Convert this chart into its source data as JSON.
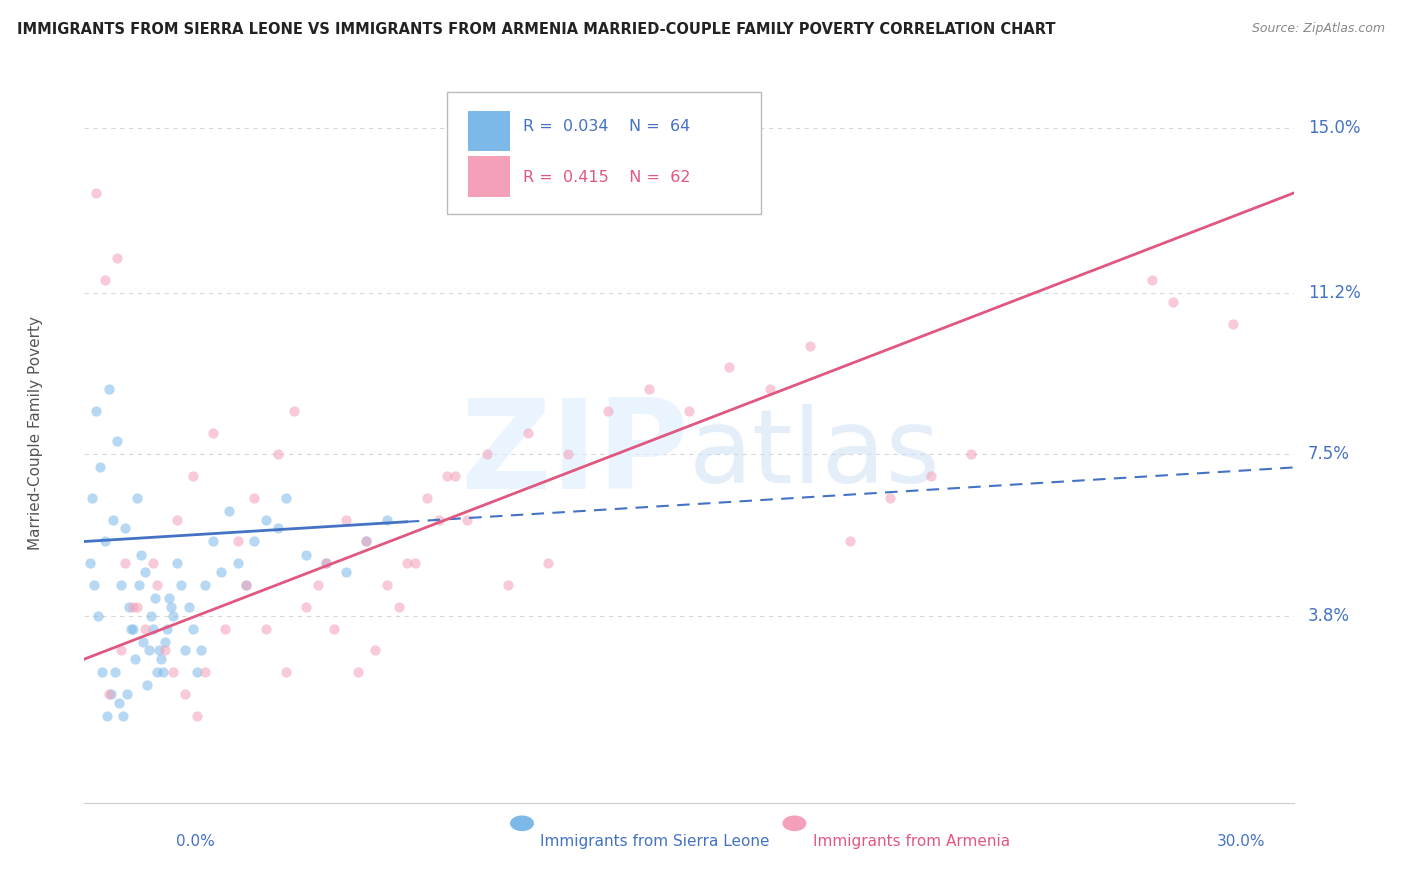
{
  "title": "IMMIGRANTS FROM SIERRA LEONE VS IMMIGRANTS FROM ARMENIA MARRIED-COUPLE FAMILY POVERTY CORRELATION CHART",
  "source": "Source: ZipAtlas.com",
  "ylabel": "Married-Couple Family Poverty",
  "xlim": [
    0.0,
    30.0
  ],
  "ylim": [
    -0.5,
    16.5
  ],
  "ytick_vals": [
    0.0,
    3.8,
    7.5,
    11.2,
    15.0
  ],
  "ytick_labels": [
    "",
    "3.8%",
    "7.5%",
    "11.2%",
    "15.0%"
  ],
  "color_sierra": "#7cb8e8",
  "color_armenia": "#f4a0b8",
  "color_blue_text": "#4472c4",
  "color_pink_text": "#e05880",
  "color_grid": "#d8d8d8",
  "background_color": "#ffffff",
  "sierra_x": [
    0.2,
    0.3,
    0.4,
    0.5,
    0.6,
    0.7,
    0.8,
    0.9,
    1.0,
    1.1,
    1.2,
    1.3,
    1.4,
    1.5,
    1.6,
    1.7,
    1.8,
    1.9,
    2.0,
    2.1,
    2.2,
    2.3,
    2.4,
    2.5,
    2.6,
    2.7,
    2.8,
    2.9,
    3.0,
    3.2,
    3.4,
    3.6,
    3.8,
    4.0,
    4.2,
    4.5,
    4.8,
    5.0,
    5.5,
    6.0,
    6.5,
    7.0,
    7.5,
    0.15,
    0.25,
    0.35,
    0.45,
    0.55,
    0.65,
    0.75,
    0.85,
    0.95,
    1.05,
    1.15,
    1.25,
    1.35,
    1.45,
    1.55,
    1.65,
    1.75,
    1.85,
    1.95,
    2.05,
    2.15
  ],
  "sierra_y": [
    6.5,
    8.5,
    7.2,
    5.5,
    9.0,
    6.0,
    7.8,
    4.5,
    5.8,
    4.0,
    3.5,
    6.5,
    5.2,
    4.8,
    3.0,
    3.5,
    2.5,
    2.8,
    3.2,
    4.2,
    3.8,
    5.0,
    4.5,
    3.0,
    4.0,
    3.5,
    2.5,
    3.0,
    4.5,
    5.5,
    4.8,
    6.2,
    5.0,
    4.5,
    5.5,
    6.0,
    5.8,
    6.5,
    5.2,
    5.0,
    4.8,
    5.5,
    6.0,
    5.0,
    4.5,
    3.8,
    2.5,
    1.5,
    2.0,
    2.5,
    1.8,
    1.5,
    2.0,
    3.5,
    2.8,
    4.5,
    3.2,
    2.2,
    3.8,
    4.2,
    3.0,
    2.5,
    3.5,
    4.0
  ],
  "armenia_x": [
    0.3,
    0.5,
    0.8,
    1.0,
    1.2,
    1.5,
    1.8,
    2.0,
    2.2,
    2.5,
    2.8,
    3.0,
    3.5,
    4.0,
    4.5,
    5.0,
    5.5,
    6.0,
    6.5,
    7.0,
    7.5,
    8.0,
    8.5,
    9.0,
    9.5,
    10.0,
    11.0,
    12.0,
    13.0,
    14.0,
    15.0,
    16.0,
    17.0,
    18.0,
    19.0,
    20.0,
    21.0,
    22.0,
    0.6,
    0.9,
    1.3,
    1.7,
    2.3,
    2.7,
    3.2,
    3.8,
    4.2,
    4.8,
    5.2,
    5.8,
    6.2,
    6.8,
    7.2,
    7.8,
    8.2,
    8.8,
    9.2,
    10.5,
    11.5,
    26.5,
    28.5,
    27.0
  ],
  "armenia_y": [
    13.5,
    11.5,
    12.0,
    5.0,
    4.0,
    3.5,
    4.5,
    3.0,
    2.5,
    2.0,
    1.5,
    2.5,
    3.5,
    4.5,
    3.5,
    2.5,
    4.0,
    5.0,
    6.0,
    5.5,
    4.5,
    5.0,
    6.5,
    7.0,
    6.0,
    7.5,
    8.0,
    7.5,
    8.5,
    9.0,
    8.5,
    9.5,
    9.0,
    10.0,
    5.5,
    6.5,
    7.0,
    7.5,
    2.0,
    3.0,
    4.0,
    5.0,
    6.0,
    7.0,
    8.0,
    5.5,
    6.5,
    7.5,
    8.5,
    4.5,
    3.5,
    2.5,
    3.0,
    4.0,
    5.0,
    6.0,
    7.0,
    4.5,
    5.0,
    11.5,
    10.5,
    11.0
  ],
  "sl_trend_x0": 0.0,
  "sl_trend_x1": 30.0,
  "sl_trend_y0": 5.5,
  "sl_trend_y1": 7.2,
  "sl_solid_end": 8.0,
  "ar_trend_x0": 0.0,
  "ar_trend_x1": 30.0,
  "ar_trend_y0": 2.8,
  "ar_trend_y1": 13.5
}
